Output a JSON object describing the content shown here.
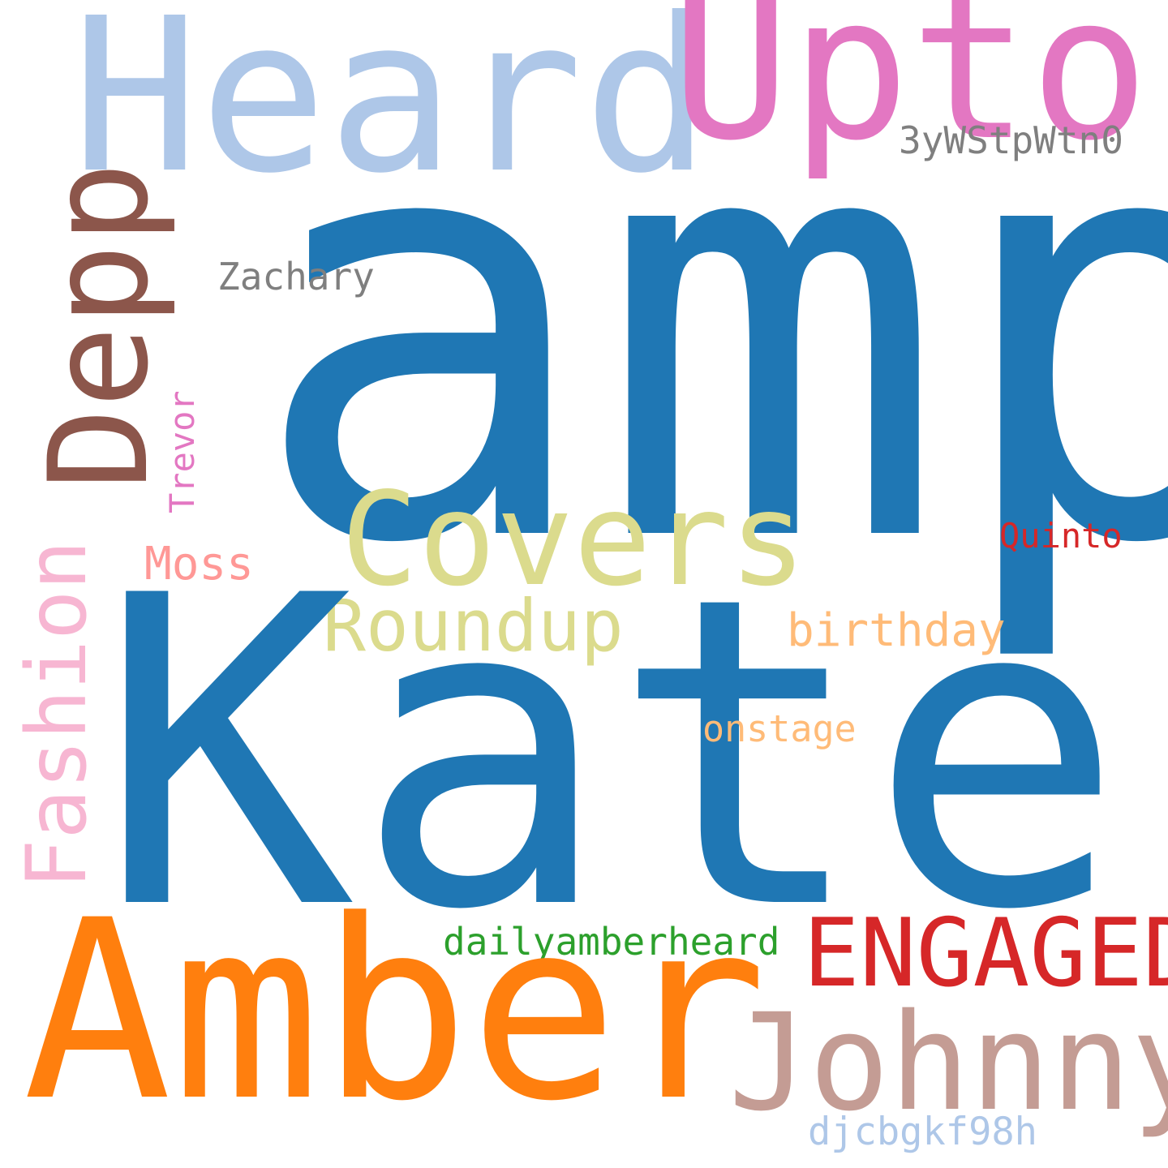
{
  "words": {
    "amp": {
      "text": "amp",
      "color": "#1f77b4"
    },
    "kate": {
      "text": "Kate",
      "color": "#1f77b4"
    },
    "amber": {
      "text": "Amber",
      "color": "#ff7f0e"
    },
    "heard": {
      "text": "Heard",
      "color": "#aec7e8"
    },
    "upton": {
      "text": "Upton",
      "color": "#e377c2"
    },
    "depp": {
      "text": "Depp",
      "color": "#8c564b"
    },
    "covers": {
      "text": "Covers",
      "color": "#dbdb8d"
    },
    "johnny": {
      "text": "Johnny",
      "color": "#c49c94"
    },
    "engaged": {
      "text": "ENGAGED",
      "color": "#d62728"
    },
    "fashion": {
      "text": "Fashion",
      "color": "#f7b6d2"
    },
    "roundup": {
      "text": "Roundup",
      "color": "#dbdb8d"
    },
    "birthday": {
      "text": "birthday",
      "color": "#ffbb78"
    },
    "moss": {
      "text": "Moss",
      "color": "#ff9896"
    },
    "zachary": {
      "text": "Zachary",
      "color": "#7f7f7f"
    },
    "code1": {
      "text": "3yWStpWtn0",
      "color": "#7f7f7f"
    },
    "trevor": {
      "text": "Trevor",
      "color": "#e377c2"
    },
    "quinto": {
      "text": "Quinto",
      "color": "#d62728"
    },
    "onstage": {
      "text": "onstage",
      "color": "#ffbb78"
    },
    "dailyamberheard": {
      "text": "dailyamberheard",
      "color": "#2ca02c"
    },
    "code2": {
      "text": "djcbgkf98h",
      "color": "#aec7e8"
    }
  }
}
